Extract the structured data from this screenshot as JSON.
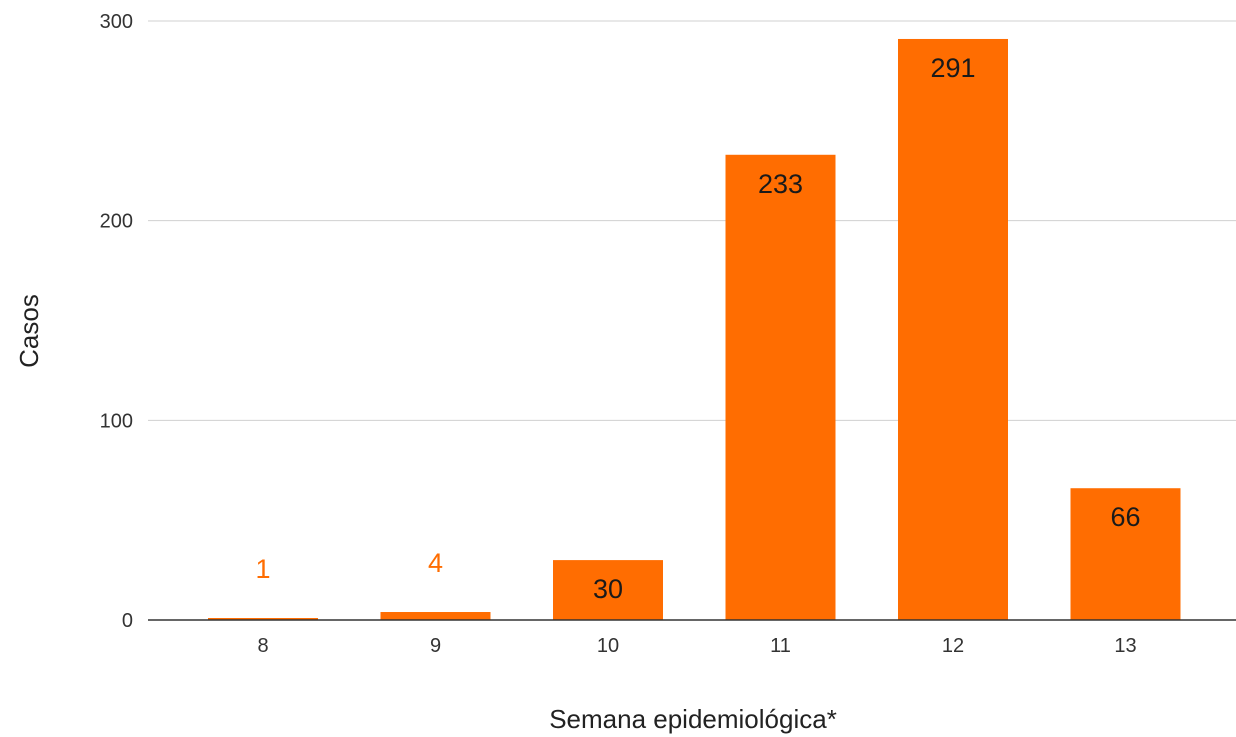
{
  "chart_data": {
    "type": "bar",
    "title": "",
    "xlabel": "Semana epidemiológica*",
    "ylabel": "Casos",
    "categories": [
      "8",
      "9",
      "10",
      "11",
      "12",
      "13"
    ],
    "values": [
      1,
      4,
      30,
      233,
      291,
      66
    ],
    "ylim": [
      0,
      300
    ],
    "yticks": [
      0,
      100,
      200,
      300
    ],
    "grid": true,
    "legend": "none",
    "colors": {
      "bar": "#ff6d01",
      "label_inside": "#1a1a1a",
      "label_outside": "#ff6d01"
    }
  }
}
